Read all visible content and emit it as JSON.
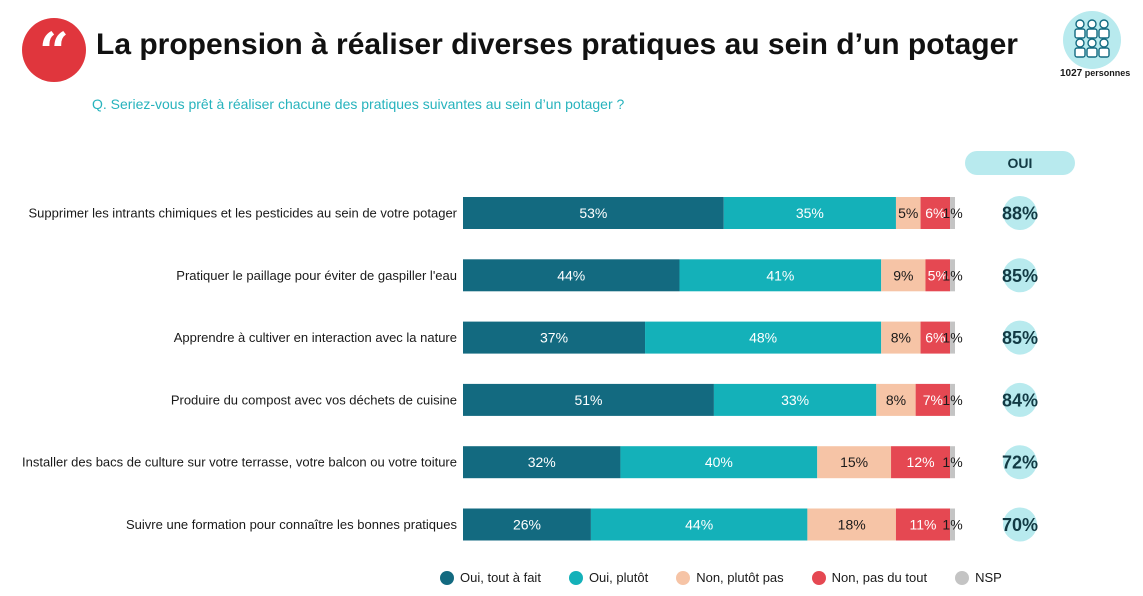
{
  "header": {
    "title": "La propension à réaliser diverses pratiques au sein d’un potager",
    "question": "Q. Seriez-vous prêt à réaliser chacune des pratiques suivantes au sein d’un potager ?",
    "quote_mark": "“",
    "sample_number": "1027",
    "sample_label": "personnes"
  },
  "oui_header": "OUI",
  "colors": {
    "accent_red": "#e0363d",
    "question_teal": "#27b3bd",
    "oui_bubble": "#b8eaee"
  },
  "chart_data": {
    "type": "bar",
    "orientation": "horizontal",
    "stacked": true,
    "categories": [
      "Supprimer les intrants chimiques et les pesticides au sein de votre potager",
      "Pratiquer le paillage pour éviter de gaspiller l'eau",
      "Apprendre à cultiver en interaction avec la nature",
      "Produire du compost avec vos déchets de cuisine",
      "Installer des bacs de culture sur votre terrasse, votre balcon ou votre toiture",
      "Suivre une formation pour connaître les bonnes pratiques"
    ],
    "series": [
      {
        "name": "Oui, tout à fait",
        "color": "#136a80",
        "label_color": "#ffffff",
        "values": [
          53,
          44,
          37,
          51,
          32,
          26
        ],
        "labels": [
          "53%",
          "44%",
          "37%",
          "51%",
          "32%",
          "26%"
        ]
      },
      {
        "name": "Oui, plutôt",
        "color": "#14b1b9",
        "label_color": "#ffffff",
        "values": [
          35,
          41,
          48,
          33,
          40,
          44
        ],
        "labels": [
          "35%",
          "41%",
          "48%",
          "33%",
          "40%",
          "44%"
        ]
      },
      {
        "name": "Non, plutôt pas",
        "color": "#f6c4a6",
        "label_color": "#1a1a1a",
        "values": [
          5,
          9,
          8,
          8,
          15,
          18
        ],
        "labels": [
          "5%",
          "9%",
          "8%",
          "8%",
          "15%",
          "18%"
        ]
      },
      {
        "name": "Non, pas du tout",
        "color": "#e54852",
        "label_color": "#ffffff",
        "values": [
          6,
          5,
          6,
          7,
          12,
          11
        ],
        "labels": [
          "6%",
          "5%",
          "6%",
          "7%",
          "12%",
          "11%"
        ]
      },
      {
        "name": "NSP",
        "color": "#c4c4c4",
        "label_color": "#1a1a1a",
        "values": [
          1,
          1,
          1,
          1,
          1,
          1
        ],
        "labels": [
          "1%",
          "1%",
          "1%",
          "1%",
          "1%",
          "1%"
        ]
      }
    ],
    "totals_oui": [
      "88%",
      "85%",
      "85%",
      "84%",
      "72%",
      "70%"
    ],
    "xlim": [
      0,
      100
    ],
    "legend": "bottom",
    "grid": false
  }
}
